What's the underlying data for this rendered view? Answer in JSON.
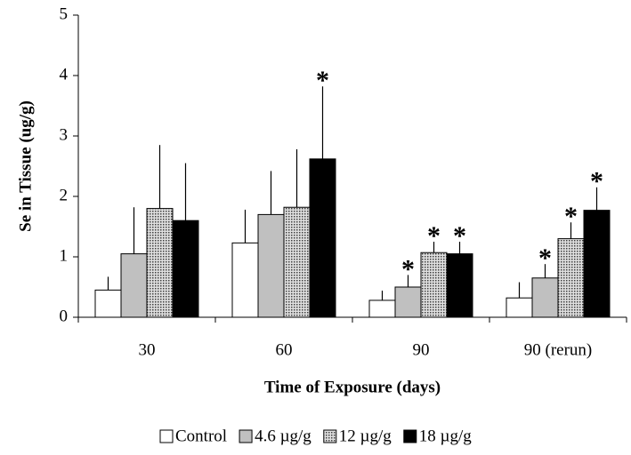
{
  "chart_data": {
    "type": "bar",
    "ylabel": "Se in Tissue (ug/g)",
    "xlabel": "Time of Exposure (days)",
    "categories": [
      "30",
      "60",
      "90",
      "90 (rerun)"
    ],
    "ylim": [
      0,
      5
    ],
    "yticks": [
      0,
      1,
      2,
      3,
      4,
      5
    ],
    "series": [
      {
        "name": "Control",
        "color": "#ffffff",
        "values": [
          0.45,
          1.23,
          0.28,
          0.32
        ],
        "errors": [
          0.22,
          0.55,
          0.16,
          0.26
        ],
        "annotations": [
          null,
          null,
          null,
          null
        ]
      },
      {
        "name": "4.6 µg/g",
        "color": "#c0c0c0",
        "values": [
          1.05,
          1.7,
          0.5,
          0.65
        ],
        "errors": [
          0.77,
          0.72,
          0.2,
          0.23
        ],
        "annotations": [
          null,
          null,
          "*",
          "*"
        ]
      },
      {
        "name": "12 µg/g",
        "color": "#9a9a9a",
        "pattern": "dots",
        "values": [
          1.8,
          1.82,
          1.07,
          1.3
        ],
        "errors": [
          1.05,
          0.96,
          0.18,
          0.27
        ],
        "annotations": [
          null,
          null,
          "*",
          "*"
        ]
      },
      {
        "name": "18 µg/g",
        "color": "#000000",
        "values": [
          1.6,
          2.62,
          1.05,
          1.77
        ],
        "errors": [
          0.95,
          1.2,
          0.2,
          0.38
        ],
        "annotations": [
          null,
          "*",
          "*",
          "*"
        ]
      }
    ]
  }
}
